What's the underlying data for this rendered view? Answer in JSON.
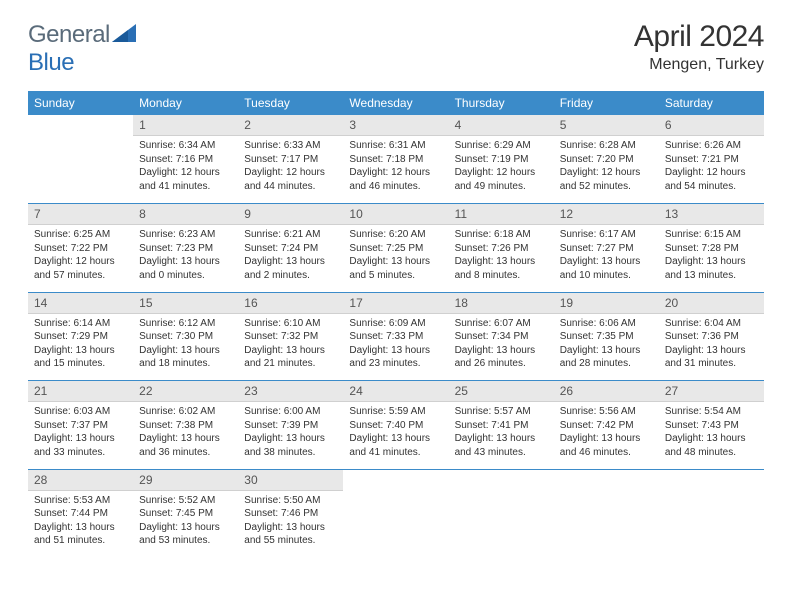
{
  "logo": {
    "part1": "General",
    "part2": "Blue"
  },
  "title": "April 2024",
  "location": "Mengen, Turkey",
  "colors": {
    "header_bg": "#3b8bc9",
    "header_fg": "#ffffff",
    "daynum_bg": "#e8e8e8",
    "daynum_fg": "#555555",
    "separator": "#3b8bc9",
    "text": "#333333",
    "logo_gray": "#5a6b7a",
    "logo_blue": "#2a6fb5"
  },
  "fonts": {
    "title_size": 30,
    "location_size": 16,
    "weekday_size": 12,
    "daynum_size": 12,
    "body_size": 10
  },
  "weekdays": [
    "Sunday",
    "Monday",
    "Tuesday",
    "Wednesday",
    "Thursday",
    "Friday",
    "Saturday"
  ],
  "layout": {
    "first_weekday_index": 1,
    "days_in_month": 30
  },
  "days": [
    {
      "n": 1,
      "sr": "6:34 AM",
      "ss": "7:16 PM",
      "dl": "12 hours and 41 minutes."
    },
    {
      "n": 2,
      "sr": "6:33 AM",
      "ss": "7:17 PM",
      "dl": "12 hours and 44 minutes."
    },
    {
      "n": 3,
      "sr": "6:31 AM",
      "ss": "7:18 PM",
      "dl": "12 hours and 46 minutes."
    },
    {
      "n": 4,
      "sr": "6:29 AM",
      "ss": "7:19 PM",
      "dl": "12 hours and 49 minutes."
    },
    {
      "n": 5,
      "sr": "6:28 AM",
      "ss": "7:20 PM",
      "dl": "12 hours and 52 minutes."
    },
    {
      "n": 6,
      "sr": "6:26 AM",
      "ss": "7:21 PM",
      "dl": "12 hours and 54 minutes."
    },
    {
      "n": 7,
      "sr": "6:25 AM",
      "ss": "7:22 PM",
      "dl": "12 hours and 57 minutes."
    },
    {
      "n": 8,
      "sr": "6:23 AM",
      "ss": "7:23 PM",
      "dl": "13 hours and 0 minutes."
    },
    {
      "n": 9,
      "sr": "6:21 AM",
      "ss": "7:24 PM",
      "dl": "13 hours and 2 minutes."
    },
    {
      "n": 10,
      "sr": "6:20 AM",
      "ss": "7:25 PM",
      "dl": "13 hours and 5 minutes."
    },
    {
      "n": 11,
      "sr": "6:18 AM",
      "ss": "7:26 PM",
      "dl": "13 hours and 8 minutes."
    },
    {
      "n": 12,
      "sr": "6:17 AM",
      "ss": "7:27 PM",
      "dl": "13 hours and 10 minutes."
    },
    {
      "n": 13,
      "sr": "6:15 AM",
      "ss": "7:28 PM",
      "dl": "13 hours and 13 minutes."
    },
    {
      "n": 14,
      "sr": "6:14 AM",
      "ss": "7:29 PM",
      "dl": "13 hours and 15 minutes."
    },
    {
      "n": 15,
      "sr": "6:12 AM",
      "ss": "7:30 PM",
      "dl": "13 hours and 18 minutes."
    },
    {
      "n": 16,
      "sr": "6:10 AM",
      "ss": "7:32 PM",
      "dl": "13 hours and 21 minutes."
    },
    {
      "n": 17,
      "sr": "6:09 AM",
      "ss": "7:33 PM",
      "dl": "13 hours and 23 minutes."
    },
    {
      "n": 18,
      "sr": "6:07 AM",
      "ss": "7:34 PM",
      "dl": "13 hours and 26 minutes."
    },
    {
      "n": 19,
      "sr": "6:06 AM",
      "ss": "7:35 PM",
      "dl": "13 hours and 28 minutes."
    },
    {
      "n": 20,
      "sr": "6:04 AM",
      "ss": "7:36 PM",
      "dl": "13 hours and 31 minutes."
    },
    {
      "n": 21,
      "sr": "6:03 AM",
      "ss": "7:37 PM",
      "dl": "13 hours and 33 minutes."
    },
    {
      "n": 22,
      "sr": "6:02 AM",
      "ss": "7:38 PM",
      "dl": "13 hours and 36 minutes."
    },
    {
      "n": 23,
      "sr": "6:00 AM",
      "ss": "7:39 PM",
      "dl": "13 hours and 38 minutes."
    },
    {
      "n": 24,
      "sr": "5:59 AM",
      "ss": "7:40 PM",
      "dl": "13 hours and 41 minutes."
    },
    {
      "n": 25,
      "sr": "5:57 AM",
      "ss": "7:41 PM",
      "dl": "13 hours and 43 minutes."
    },
    {
      "n": 26,
      "sr": "5:56 AM",
      "ss": "7:42 PM",
      "dl": "13 hours and 46 minutes."
    },
    {
      "n": 27,
      "sr": "5:54 AM",
      "ss": "7:43 PM",
      "dl": "13 hours and 48 minutes."
    },
    {
      "n": 28,
      "sr": "5:53 AM",
      "ss": "7:44 PM",
      "dl": "13 hours and 51 minutes."
    },
    {
      "n": 29,
      "sr": "5:52 AM",
      "ss": "7:45 PM",
      "dl": "13 hours and 53 minutes."
    },
    {
      "n": 30,
      "sr": "5:50 AM",
      "ss": "7:46 PM",
      "dl": "13 hours and 55 minutes."
    }
  ],
  "labels": {
    "sunrise": "Sunrise:",
    "sunset": "Sunset:",
    "daylight": "Daylight:"
  }
}
